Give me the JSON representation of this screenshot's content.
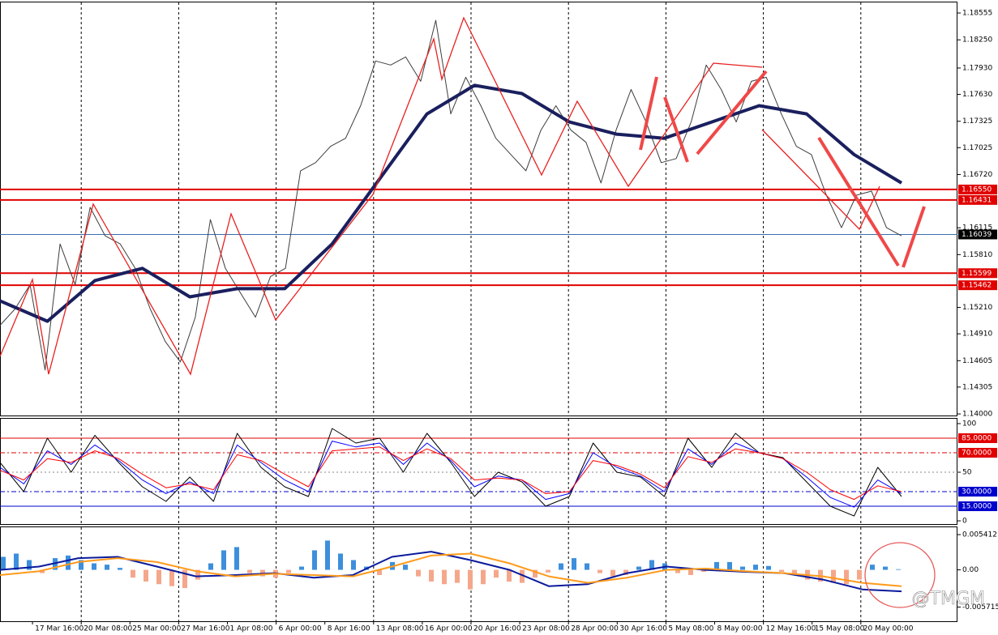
{
  "chart_data": [
    {
      "type": "line",
      "ylim": [
        1.13982,
        1.18675
      ],
      "yticks": [
        1.18555,
        {
          "value": 1.1825,
          "label": "1.18250"
        },
        {
          "value": 1.1793,
          "label": "1.17930"
        },
        {
          "value": 1.1763,
          "label": "1.17630"
        },
        1.17325,
        1.17025,
        {
          "value": 1.1672,
          "label": "1.16720"
        },
        1.16115,
        {
          "value": 1.1581,
          "label": "1.15810"
        },
        {
          "value": 1.1521,
          "label": "1.15210"
        },
        {
          "value": 1.1491,
          "label": "1.14910"
        },
        1.14605,
        1.14305,
        {
          "value": 1.14,
          "label": "1.14000"
        }
      ],
      "levels": [
        {
          "value": 1.1655,
          "label": "1.16550",
          "color": "#e00000"
        },
        {
          "value": 1.16431,
          "label": "1.16431",
          "color": "#e00000"
        },
        {
          "value": 1.16039,
          "label": "1.16039",
          "color": "#000000"
        },
        {
          "value": 1.15599,
          "label": "1.15599",
          "color": "#e00000"
        },
        {
          "value": 1.15462,
          "label": "1.15462",
          "color": "#e00000"
        }
      ],
      "time_labels": [
        "00",
        "17 Mar 16:00",
        "20 Mar 08:00",
        "25 Mar 00:00",
        "27 Mar 16:00",
        "1 Apr 08:00",
        "6 Apr 00:00",
        "8 Apr 16:00",
        "13 Apr 08:00",
        "16 Apr 00:00",
        "20 Apr 16:00",
        "23 Apr 08:00",
        "28 Apr 00:00",
        "30 Apr 16:00",
        "5 May 08:00",
        "8 May 00:00",
        "12 May 16:00",
        "15 May 08:00",
        "20 May 00:00"
      ],
      "series": [
        {
          "color": "#3d3d3d",
          "width": 1,
          "values": [
            1.15007,
            1.15192,
            1.15469,
            1.14499,
            1.15931,
            1.15469,
            1.16347,
            1.16023,
            1.15931,
            1.15654,
            1.15192,
            1.14822,
            1.14591,
            1.15099,
            1.16208,
            1.15654,
            1.15376,
            1.15099,
            1.15561,
            1.15654,
            1.16762,
            1.16855,
            1.1704,
            1.17132,
            1.17502,
            1.1801,
            1.17964,
            1.18056,
            1.17779,
            1.18472,
            1.17409,
            1.17825,
            1.17502,
            1.17132,
            1.16947,
            1.16762,
            1.17224,
            1.17502,
            1.17224,
            1.17086,
            1.16624,
            1.17224,
            1.17686,
            1.17317,
            1.16855,
            1.16901,
            1.17317,
            1.17964,
            1.17686,
            1.17317,
            1.17779,
            1.17825,
            1.17409,
            1.1704,
            1.16947,
            1.16485,
            1.16116,
            1.16485,
            1.16531,
            1.16116,
            1.16023
          ]
        },
        {
          "color": "#1a1f5e",
          "width": 4,
          "values": [
            1.15284,
            1.15053,
            1.15515,
            1.15654,
            1.1533,
            1.15423,
            1.15423,
            1.15931,
            1.1667,
            1.17409,
            1.17733,
            1.1764,
            1.17317,
            1.17178,
            1.17132,
            1.17317,
            1.17502,
            1.17409,
            1.16947,
            1.16624
          ]
        }
      ]
    },
    {
      "type": "line",
      "ylim": [
        -3.3,
        105
      ],
      "yticks": [
        0,
        50,
        100
      ],
      "levels": [
        {
          "value": 85,
          "label": "85.0000",
          "color": "#e00000",
          "dash": false
        },
        {
          "value": 70,
          "label": "70.0000",
          "color": "#e00000",
          "dash": true
        },
        {
          "value": 30,
          "label": "30.0000",
          "color": "#0000cc",
          "dash": true
        },
        {
          "value": 15,
          "label": "15.0000",
          "color": "#0000cc",
          "dash": false
        }
      ],
      "series": [
        {
          "color": "#000000",
          "width": 1,
          "values": [
            60,
            30,
            85,
            50,
            88,
            60,
            35,
            20,
            45,
            20,
            90,
            55,
            35,
            25,
            95,
            80,
            85,
            50,
            90,
            60,
            25,
            50,
            40,
            15,
            25,
            80,
            50,
            45,
            25,
            85,
            55,
            90,
            70,
            65,
            40,
            15,
            5,
            55,
            25
          ]
        },
        {
          "color": "#0000ff",
          "width": 1,
          "values": [
            55,
            38,
            72,
            58,
            78,
            62,
            42,
            28,
            40,
            28,
            78,
            60,
            42,
            30,
            82,
            76,
            80,
            58,
            80,
            62,
            35,
            46,
            42,
            22,
            28,
            70,
            55,
            46,
            30,
            74,
            58,
            80,
            70,
            64,
            45,
            24,
            14,
            42,
            28
          ]
        },
        {
          "color": "#ff0000",
          "width": 1,
          "values": [
            52,
            42,
            64,
            60,
            72,
            64,
            48,
            34,
            38,
            32,
            68,
            62,
            48,
            35,
            72,
            74,
            76,
            62,
            74,
            64,
            42,
            44,
            42,
            28,
            30,
            62,
            57,
            48,
            34,
            66,
            60,
            74,
            70,
            64,
            50,
            32,
            22,
            36,
            30
          ]
        }
      ]
    },
    {
      "type": "bar",
      "ylim": [
        -0.0078925,
        0.0065396
      ],
      "yticks": [
        0.0054121,
        {
          "value": 0,
          "label": "0.00"
        },
        -0.0057154
      ],
      "up_color": "#3d8fdc",
      "down_color": "#f5a78c",
      "values": [
        0.002,
        0.0025,
        0.0015,
        -0.0005,
        0.0018,
        0.0022,
        0.0015,
        0.001,
        0.0008,
        0.0003,
        -0.0012,
        -0.0018,
        -0.0022,
        -0.0025,
        -0.0028,
        -0.0015,
        0.001,
        0.003,
        0.0035,
        -0.0005,
        -0.001,
        -0.0012,
        -0.0005,
        0.0005,
        0.003,
        0.0045,
        0.0025,
        0.0015,
        0.0005,
        -0.0008,
        0.0012,
        0.0008,
        -0.001,
        -0.0018,
        -0.0022,
        -0.002,
        -0.003,
        -0.0022,
        -0.0012,
        -0.0018,
        -0.002,
        -0.0012,
        -0.0004,
        0.001,
        0.0018,
        0.001,
        -0.0005,
        -0.001,
        -0.0008,
        0.0005,
        0.0015,
        0.001,
        -0.0005,
        -0.0008,
        -0.0003,
        0.0012,
        0.0012,
        0.0005,
        0.0008,
        0.0006,
        -0.0003,
        -0.0008,
        -0.0015,
        -0.0018,
        -0.002,
        -0.0022,
        -0.0015,
        0.0008,
        0.0005,
        0.0001
      ],
      "series": [
        {
          "color": "#0a1a9c",
          "width": 2,
          "values": [
            0,
            0.0005,
            0.0018,
            0.002,
            0.0005,
            -0.001,
            -0.0008,
            -0.0005,
            -0.0012,
            -0.0008,
            0.002,
            0.0028,
            0.0015,
            0,
            -0.0025,
            -0.0022,
            -0.0005,
            0.0005,
            0,
            -0.0003,
            -0.0005,
            -0.0015,
            -0.003,
            -0.0033
          ]
        },
        {
          "color": "#ff9a1a",
          "width": 2,
          "values": [
            -0.0008,
            -0.0002,
            0.0012,
            0.0018,
            0.0012,
            -0.0002,
            -0.001,
            -0.0006,
            -0.0008,
            -0.001,
            0.0005,
            0.0022,
            0.0025,
            0.001,
            -0.001,
            -0.002,
            -0.0012,
            0,
            0.0002,
            -0.0002,
            -0.0005,
            -0.001,
            -0.002,
            -0.0025
          ]
        }
      ]
    }
  ],
  "watermark": "@TMGM"
}
